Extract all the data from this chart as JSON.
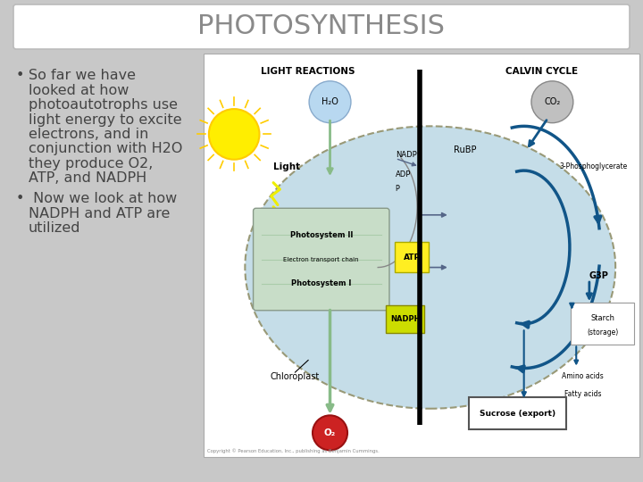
{
  "title": "PHOTOSYNTHESIS",
  "title_color": "#8a8a8a",
  "title_fontsize": 22,
  "slide_bg": "#c8c8c8",
  "title_box_color": "#ffffff",
  "bullet1_lines": [
    "So far we have",
    "looked at how",
    "photoautotrophs use",
    "light energy to excite",
    "electrons, and in",
    "conjunction with H2O",
    "they produce O2,",
    "ATP, and NADPH"
  ],
  "bullet2_lines": [
    " Now we look at how",
    "NADPH and ATP are",
    "utilized"
  ],
  "text_color": "#444444",
  "text_fontsize": 11.5
}
